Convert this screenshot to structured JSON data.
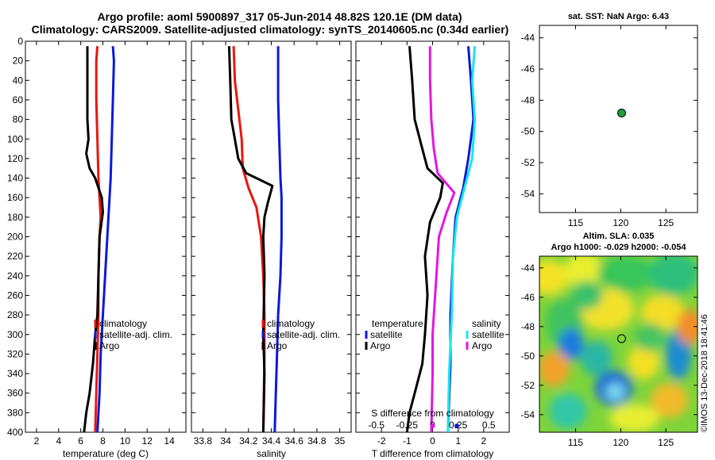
{
  "header": {
    "line1": "Argo profile: aoml 5900897_317 05-Jun-2014 48.82S 120.1E (DM data)",
    "line2": "Climatology: CARS2009. Satellite-adjusted climatology: synTS_20140605.nc (0.34d earlier)"
  },
  "colors": {
    "climatology": "#e8170d",
    "satellite": "#0b19d8",
    "argo": "#000000",
    "sal_sat": "#17e6e9",
    "sal_clim": "#e216e4"
  },
  "chart_data": [
    {
      "type": "line",
      "name": "temperature",
      "xlabel": "temperature (deg C)",
      "ylabel": "",
      "xlim": [
        1,
        15.5
      ],
      "ylim": [
        400,
        0
      ],
      "xticks": [
        2,
        4,
        6,
        8,
        10,
        12,
        14
      ],
      "yticks": [
        0,
        20,
        40,
        60,
        80,
        100,
        120,
        140,
        160,
        180,
        200,
        220,
        240,
        260,
        280,
        300,
        320,
        340,
        360,
        380,
        400
      ],
      "legend": [
        "climatology",
        "satellite-adj. clim.",
        "Argo"
      ],
      "series": [
        {
          "name": "climatology",
          "color": "#e8170d",
          "points": [
            [
              7.5,
              5
            ],
            [
              7.4,
              20
            ],
            [
              7.4,
              60
            ],
            [
              7.5,
              100
            ],
            [
              7.6,
              140
            ],
            [
              7.7,
              160
            ],
            [
              7.8,
              180
            ],
            [
              7.7,
              200
            ],
            [
              7.6,
              240
            ],
            [
              7.6,
              280
            ],
            [
              7.5,
              320
            ],
            [
              7.4,
              360
            ],
            [
              7.3,
              400
            ]
          ]
        },
        {
          "name": "satellite-adj. clim.",
          "color": "#0b19d8",
          "points": [
            [
              8.9,
              5
            ],
            [
              9.0,
              20
            ],
            [
              8.9,
              60
            ],
            [
              8.8,
              100
            ],
            [
              8.7,
              140
            ],
            [
              8.6,
              160
            ],
            [
              8.4,
              200
            ],
            [
              8.2,
              240
            ],
            [
              8.0,
              280
            ],
            [
              7.8,
              320
            ],
            [
              7.7,
              360
            ],
            [
              7.5,
              400
            ]
          ]
        },
        {
          "name": "Argo",
          "color": "#000000",
          "points": [
            [
              6.6,
              5
            ],
            [
              6.6,
              40
            ],
            [
              6.6,
              80
            ],
            [
              6.7,
              100
            ],
            [
              6.5,
              115
            ],
            [
              6.8,
              130
            ],
            [
              7.3,
              140
            ],
            [
              7.9,
              160
            ],
            [
              8.0,
              175
            ],
            [
              7.7,
              200
            ],
            [
              7.6,
              240
            ],
            [
              7.5,
              280
            ],
            [
              7.3,
              300
            ],
            [
              7.1,
              330
            ],
            [
              6.8,
              360
            ],
            [
              6.5,
              380
            ],
            [
              6.3,
              400
            ]
          ]
        }
      ]
    },
    {
      "type": "line",
      "name": "salinity",
      "xlabel": "salinity",
      "ylabel": "",
      "xlim": [
        33.7,
        35.1
      ],
      "ylim": [
        400,
        0
      ],
      "xticks": [
        33.8,
        34,
        34.2,
        34.4,
        34.6,
        34.8,
        35
      ],
      "xticklabels": [
        "33.8",
        "34",
        "34.2",
        "34.4",
        "34.6",
        "34.8",
        "35"
      ],
      "legend": [
        "climatology",
        "satellite-adj. clim.",
        "Argo"
      ],
      "series": [
        {
          "name": "climatology",
          "color": "#e8170d",
          "points": [
            [
              34.07,
              5
            ],
            [
              34.08,
              40
            ],
            [
              34.12,
              80
            ],
            [
              34.14,
              100
            ],
            [
              34.15,
              130
            ],
            [
              34.2,
              150
            ],
            [
              34.27,
              170
            ],
            [
              34.31,
              200
            ],
            [
              34.33,
              240
            ],
            [
              34.34,
              280
            ],
            [
              34.34,
              320
            ],
            [
              34.33,
              400
            ]
          ]
        },
        {
          "name": "satellite-adj. clim.",
          "color": "#0b19d8",
          "points": [
            [
              34.46,
              5
            ],
            [
              34.46,
              60
            ],
            [
              34.47,
              100
            ],
            [
              34.48,
              140
            ],
            [
              34.49,
              160
            ],
            [
              34.49,
              200
            ],
            [
              34.48,
              240
            ],
            [
              34.46,
              280
            ],
            [
              34.45,
              320
            ],
            [
              34.44,
              360
            ],
            [
              34.43,
              400
            ]
          ]
        },
        {
          "name": "Argo",
          "color": "#000000",
          "points": [
            [
              34.03,
              5
            ],
            [
              34.04,
              40
            ],
            [
              34.05,
              80
            ],
            [
              34.08,
              100
            ],
            [
              34.11,
              120
            ],
            [
              34.18,
              135
            ],
            [
              34.41,
              148
            ],
            [
              34.37,
              165
            ],
            [
              34.34,
              180
            ],
            [
              34.33,
              200
            ],
            [
              34.34,
              240
            ],
            [
              34.33,
              300
            ],
            [
              34.34,
              340
            ],
            [
              34.33,
              400
            ]
          ]
        }
      ]
    },
    {
      "type": "line",
      "name": "difference",
      "xlabel": "T difference from climatology",
      "ylabel": "",
      "xlim": [
        -3,
        3
      ],
      "ylim": [
        400,
        0
      ],
      "xticks": [
        -2,
        -1,
        0,
        1,
        2
      ],
      "legend": [
        "temperature",
        "satellite",
        "Argo",
        "salinity",
        "satellite",
        "Argo"
      ],
      "secondary_axis_label": "S difference from climatology",
      "secondary_ticks": [
        "-0.5",
        "-0.25",
        "0",
        "0.25",
        "0.5"
      ],
      "series": [
        {
          "name": "T satellite",
          "color": "#0b19d8",
          "points": [
            [
              1.4,
              5
            ],
            [
              1.5,
              40
            ],
            [
              1.6,
              80
            ],
            [
              1.4,
              120
            ],
            [
              1.2,
              150
            ],
            [
              0.9,
              180
            ],
            [
              0.8,
              220
            ],
            [
              0.7,
              280
            ],
            [
              0.7,
              330
            ],
            [
              0.6,
              400
            ]
          ]
        },
        {
          "name": "T Argo",
          "color": "#000000",
          "points": [
            [
              -0.9,
              5
            ],
            [
              -0.8,
              40
            ],
            [
              -0.7,
              80
            ],
            [
              -0.4,
              110
            ],
            [
              -0.2,
              130
            ],
            [
              0.4,
              145
            ],
            [
              0.3,
              160
            ],
            [
              -0.1,
              185
            ],
            [
              -0.3,
              220
            ],
            [
              -0.2,
              260
            ],
            [
              -0.3,
              300
            ],
            [
              -0.4,
              330
            ],
            [
              -0.7,
              360
            ],
            [
              -0.9,
              380
            ],
            [
              -1.0,
              400
            ]
          ]
        },
        {
          "name": "S satellite",
          "color": "#17e6e9",
          "points": [
            [
              1.65,
              5
            ],
            [
              1.55,
              40
            ],
            [
              1.65,
              80
            ],
            [
              1.55,
              120
            ],
            [
              1.25,
              150
            ],
            [
              0.95,
              180
            ],
            [
              0.8,
              220
            ],
            [
              0.75,
              280
            ],
            [
              0.65,
              340
            ],
            [
              0.6,
              400
            ]
          ]
        },
        {
          "name": "S Argo",
          "color": "#e216e4",
          "points": [
            [
              -0.1,
              5
            ],
            [
              -0.1,
              40
            ],
            [
              -0.05,
              80
            ],
            [
              0.05,
              110
            ],
            [
              0.2,
              135
            ],
            [
              0.85,
              155
            ],
            [
              0.55,
              175
            ],
            [
              0.25,
              200
            ],
            [
              0.15,
              240
            ],
            [
              0.0,
              300
            ],
            [
              0.0,
              340
            ],
            [
              -0.05,
              400
            ]
          ]
        }
      ]
    },
    {
      "type": "scatter",
      "name": "sst-map",
      "title": "sat. SST: NaN Argo: 6.43",
      "xlim": [
        111,
        128.5
      ],
      "ylim": [
        -55.2,
        -43.2
      ],
      "xticks": [
        115,
        120,
        125
      ],
      "yticks": [
        -44,
        -46,
        -48,
        -50,
        -52,
        -54
      ],
      "points": [
        {
          "x": 120.1,
          "y": -48.82,
          "label": "Argo"
        }
      ]
    },
    {
      "type": "heatmap",
      "name": "sla-map",
      "title": "Altim. SLA: 0.035",
      "subtitle": "Argo h1000: -0.029 h2000: -0.054",
      "xlim": [
        111,
        128.5
      ],
      "ylim": [
        -55.2,
        -43.2
      ],
      "xticks": [
        115,
        120,
        125
      ],
      "yticks": [
        -44,
        -46,
        -48,
        -50,
        -52,
        -54
      ],
      "points": [
        {
          "x": 120.1,
          "y": -48.82,
          "label": "Argo"
        }
      ]
    }
  ],
  "watermark": "©IMOS 13-Dec-2018 18:41:46"
}
